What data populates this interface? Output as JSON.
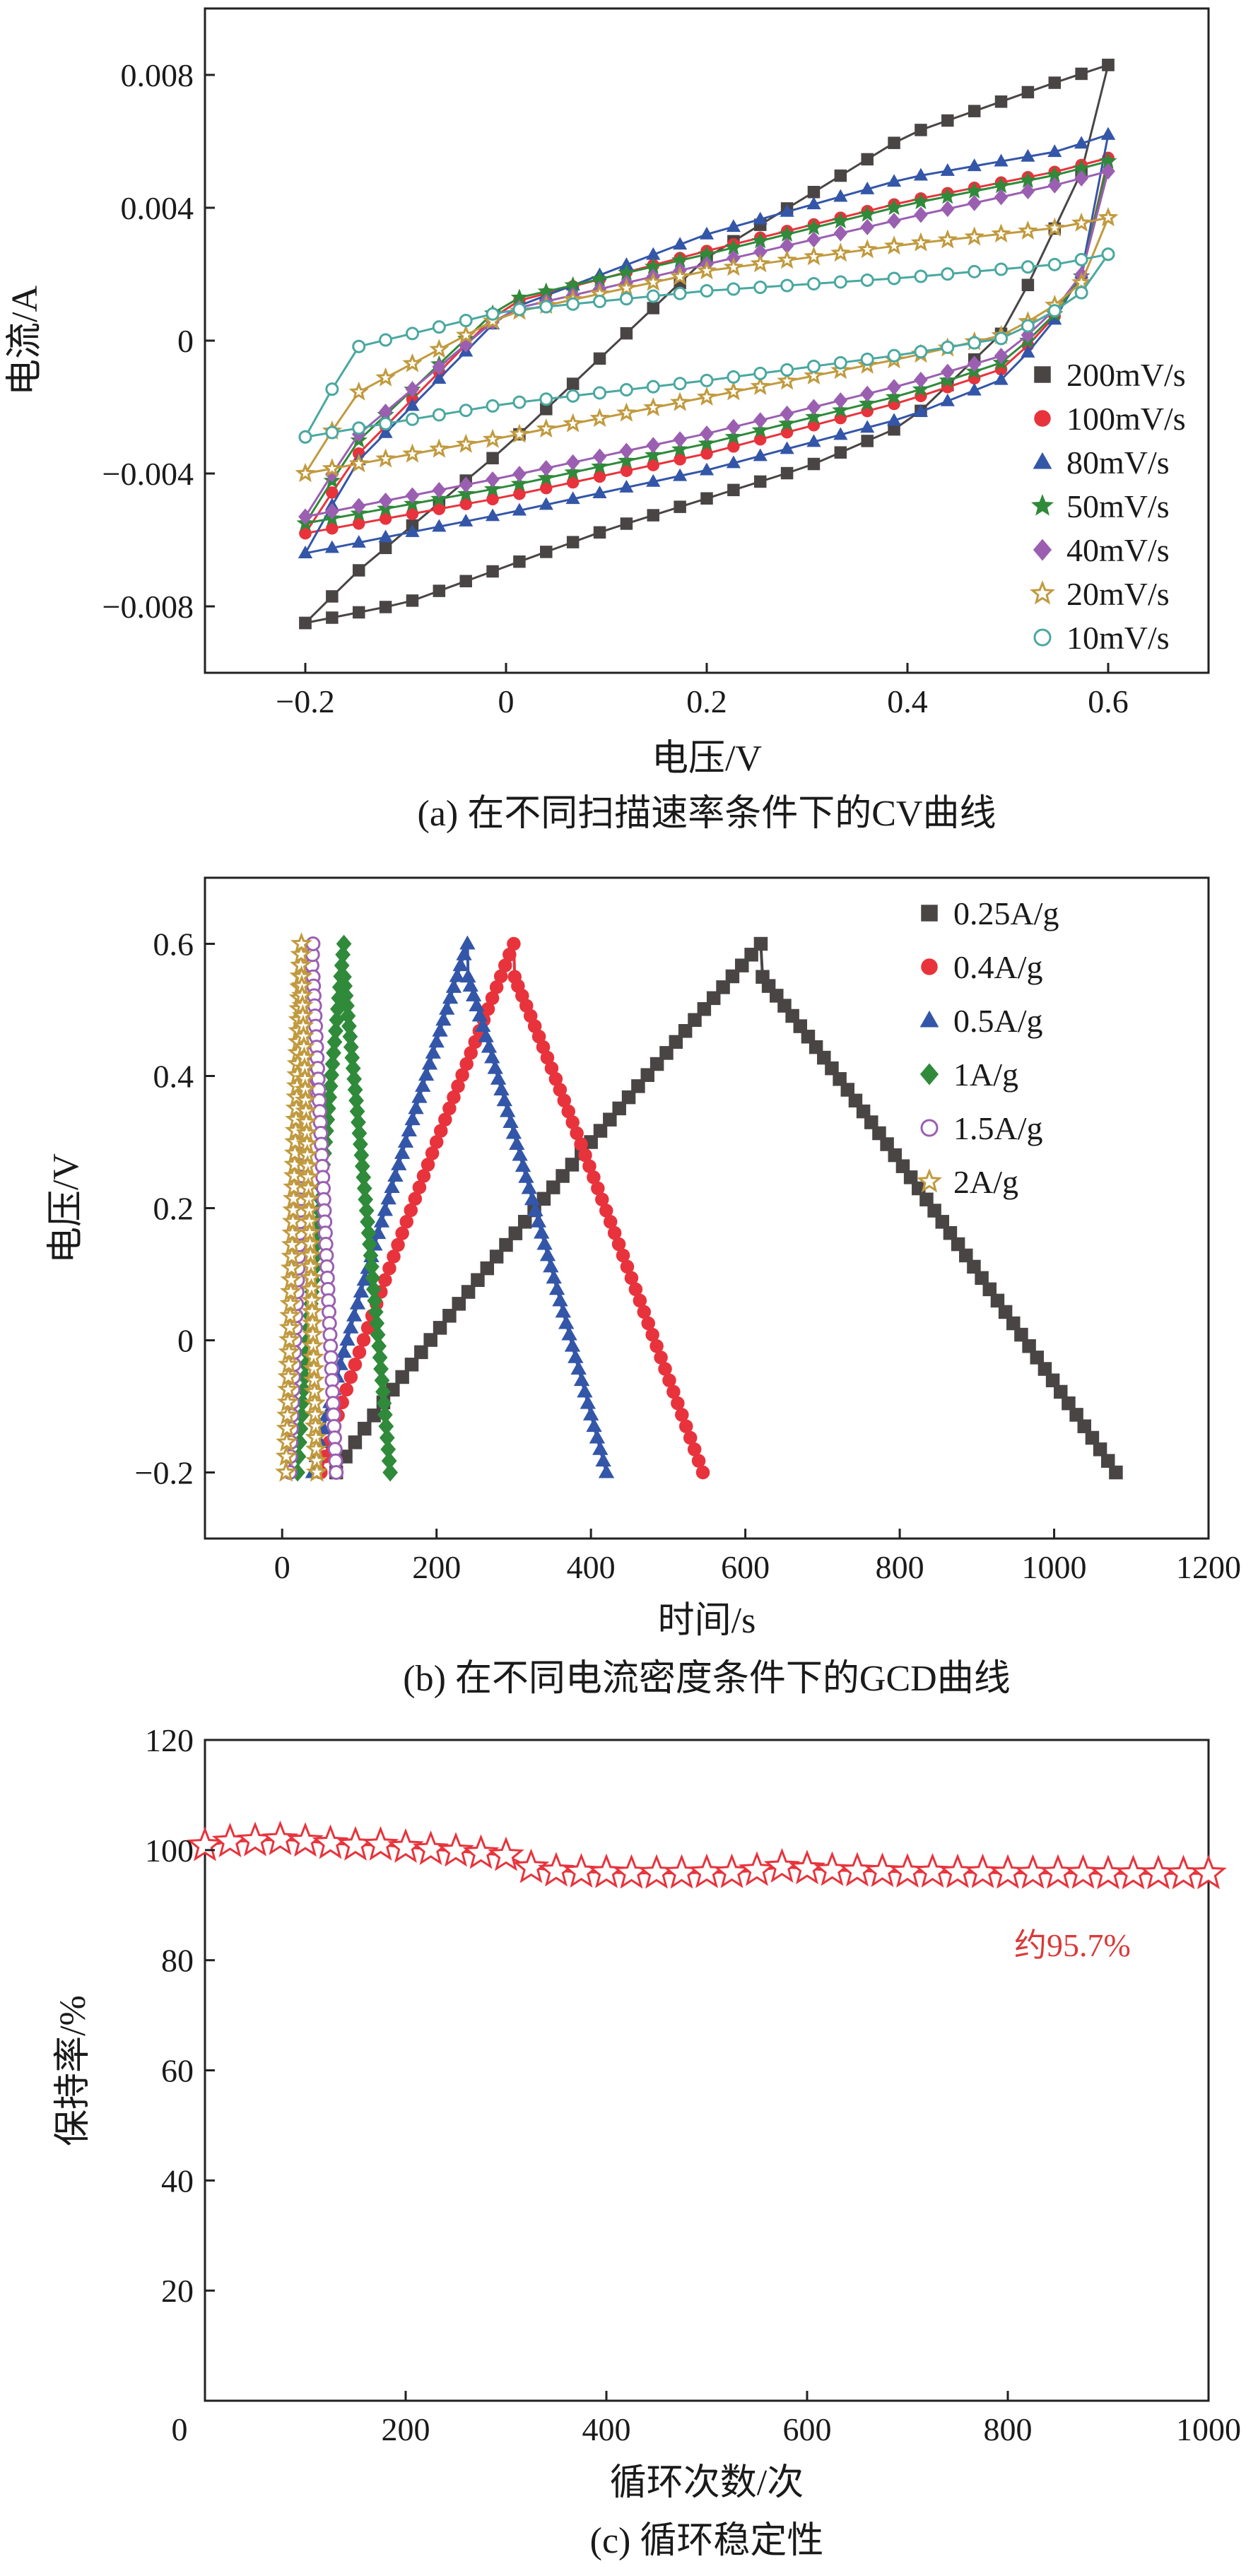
{
  "chart_data": [
    {
      "type": "line",
      "caption": "(a) 在不同扫描速率条件下的CV曲线",
      "xlabel": "电压/V",
      "ylabel": "电流/A",
      "xlim": [
        -0.3,
        0.7
      ],
      "ylim": [
        -0.01,
        0.01
      ],
      "xticks": [
        "−0.2",
        "0",
        "0.2",
        "0.4",
        "0.6"
      ],
      "yticks": [
        "−0.008",
        "−0.004",
        "0",
        "0.004",
        "0.008"
      ],
      "legend_position": "right",
      "series": [
        {
          "name": "200mV/s",
          "color": "#4a4545",
          "marker": "square",
          "open": false,
          "upper": [
            [
              -0.2,
              -0.0085
            ],
            [
              -0.15,
              -0.007
            ],
            [
              0,
              -0.0032
            ],
            [
              0.2,
              0.0025
            ],
            [
              0.4,
              0.0062
            ],
            [
              0.55,
              0.0078
            ],
            [
              0.6,
              0.0083
            ]
          ],
          "lower": [
            [
              -0.2,
              -0.0085
            ],
            [
              -0.1,
              -0.0079
            ],
            [
              0.1,
              -0.0057
            ],
            [
              0.3,
              -0.0038
            ],
            [
              0.4,
              -0.0025
            ],
            [
              0.5,
              0.0004
            ],
            [
              0.58,
              0.0055
            ],
            [
              0.6,
              0.0083
            ]
          ]
        },
        {
          "name": "100mV/s",
          "color": "#e8333c",
          "marker": "circle",
          "open": false,
          "upper": [
            [
              -0.2,
              -0.0058
            ],
            [
              -0.15,
              -0.0035
            ],
            [
              0,
              0.0011
            ],
            [
              0.2,
              0.0027
            ],
            [
              0.4,
              0.0042
            ],
            [
              0.55,
              0.0051
            ],
            [
              0.6,
              0.0055
            ]
          ],
          "lower": [
            [
              -0.2,
              -0.0058
            ],
            [
              0,
              -0.0047
            ],
            [
              0.2,
              -0.0034
            ],
            [
              0.4,
              -0.0018
            ],
            [
              0.5,
              -0.0008
            ],
            [
              0.57,
              0.0015
            ],
            [
              0.6,
              0.0055
            ]
          ]
        },
        {
          "name": "80mV/s",
          "color": "#3356a8",
          "marker": "triangle",
          "open": false,
          "upper": [
            [
              -0.2,
              -0.0064
            ],
            [
              -0.15,
              -0.0037
            ],
            [
              0,
              0.0009
            ],
            [
              0.2,
              0.0032
            ],
            [
              0.4,
              0.0049
            ],
            [
              0.55,
              0.0057
            ],
            [
              0.6,
              0.0062
            ]
          ],
          "lower": [
            [
              -0.2,
              -0.0064
            ],
            [
              0,
              -0.0052
            ],
            [
              0.2,
              -0.0039
            ],
            [
              0.4,
              -0.0023
            ],
            [
              0.5,
              -0.0011
            ],
            [
              0.57,
              0.0015
            ],
            [
              0.6,
              0.0062
            ]
          ]
        },
        {
          "name": "50mV/s",
          "color": "#2f8a3a",
          "marker": "star",
          "open": false,
          "upper": [
            [
              -0.2,
              -0.0055
            ],
            [
              -0.15,
              -0.0031
            ],
            [
              0,
              0.0012
            ],
            [
              0.2,
              0.0026
            ],
            [
              0.4,
              0.0041
            ],
            [
              0.55,
              0.005
            ],
            [
              0.6,
              0.0054
            ]
          ],
          "lower": [
            [
              -0.2,
              -0.0055
            ],
            [
              0,
              -0.0044
            ],
            [
              0.2,
              -0.0031
            ],
            [
              0.4,
              -0.0016
            ],
            [
              0.5,
              -0.0006
            ],
            [
              0.57,
              0.0015
            ],
            [
              0.6,
              0.0054
            ]
          ]
        },
        {
          "name": "40mV/s",
          "color": "#9b5fb1",
          "marker": "diamond",
          "open": false,
          "upper": [
            [
              -0.2,
              -0.0053
            ],
            [
              -0.15,
              -0.0029
            ],
            [
              0,
              0.0009
            ],
            [
              0.2,
              0.0023
            ],
            [
              0.4,
              0.0037
            ],
            [
              0.55,
              0.0047
            ],
            [
              0.6,
              0.0051
            ]
          ],
          "lower": [
            [
              -0.2,
              -0.0053
            ],
            [
              0,
              -0.0041
            ],
            [
              0.2,
              -0.0028
            ],
            [
              0.4,
              -0.0013
            ],
            [
              0.5,
              -0.0004
            ],
            [
              0.57,
              0.0016
            ],
            [
              0.6,
              0.0051
            ]
          ]
        },
        {
          "name": "20mV/s",
          "color": "#c19a3e",
          "marker": "star",
          "open": true,
          "upper": [
            [
              -0.2,
              -0.004
            ],
            [
              -0.15,
              -0.0016
            ],
            [
              0,
              0.0008
            ],
            [
              0.2,
              0.0021
            ],
            [
              0.4,
              0.0029
            ],
            [
              0.55,
              0.0034
            ],
            [
              0.6,
              0.0037
            ]
          ],
          "lower": [
            [
              -0.2,
              -0.004
            ],
            [
              0,
              -0.0029
            ],
            [
              0.2,
              -0.0017
            ],
            [
              0.4,
              -0.0005
            ],
            [
              0.5,
              0.0002
            ],
            [
              0.57,
              0.0015
            ],
            [
              0.6,
              0.0037
            ]
          ]
        },
        {
          "name": "10mV/s",
          "color": "#4aa8a0",
          "marker": "circle",
          "open": true,
          "upper": [
            [
              -0.2,
              -0.0029
            ],
            [
              -0.15,
              -0.0002
            ],
            [
              0,
              0.0009
            ],
            [
              0.2,
              0.0015
            ],
            [
              0.4,
              0.0019
            ],
            [
              0.55,
              0.0023
            ],
            [
              0.6,
              0.0026
            ]
          ],
          "lower": [
            [
              -0.2,
              -0.0029
            ],
            [
              0,
              -0.0019
            ],
            [
              0.2,
              -0.0012
            ],
            [
              0.4,
              -0.0004
            ],
            [
              0.5,
              0.0001
            ],
            [
              0.57,
              0.0013
            ],
            [
              0.6,
              0.0026
            ]
          ]
        }
      ]
    },
    {
      "type": "line",
      "caption": "(b) 在不同电流密度条件下的GCD曲线",
      "xlabel": "时间/s",
      "ylabel": "电压/V",
      "xlim": [
        -100,
        1200
      ],
      "ylim": [
        -0.3,
        0.7
      ],
      "xticks": [
        "0",
        "200",
        "400",
        "600",
        "800",
        "1000",
        "1200"
      ],
      "yticks": [
        "−0.2",
        "0",
        "0.2",
        "0.4",
        "0.6"
      ],
      "legend_position": "top-right",
      "series": [
        {
          "name": "0.25A/g",
          "color": "#4a4545",
          "marker": "square",
          "open": false,
          "t0": 70,
          "t_peak": 620,
          "t_end": 1080
        },
        {
          "name": "0.4A/g",
          "color": "#e8333c",
          "marker": "circle",
          "open": false,
          "t0": 50,
          "t_peak": 300,
          "t_end": 545
        },
        {
          "name": "0.5A/g",
          "color": "#3356a8",
          "marker": "triangle",
          "open": false,
          "t0": 40,
          "t_peak": 240,
          "t_end": 420
        },
        {
          "name": "1A/g",
          "color": "#2f8a3a",
          "marker": "diamond",
          "open": false,
          "t0": 20,
          "t_peak": 80,
          "t_end": 140
        },
        {
          "name": "1.5A/g",
          "color": "#9b5fb1",
          "marker": "circle",
          "open": true,
          "t0": 10,
          "t_peak": 40,
          "t_end": 70
        },
        {
          "name": "2A/g",
          "color": "#c19a3e",
          "marker": "star",
          "open": true,
          "t0": 5,
          "t_peak": 25,
          "t_end": 45
        }
      ]
    },
    {
      "type": "line",
      "caption": "(c) 循环稳定性",
      "xlabel": "循环次数/次",
      "ylabel": "保持率/%",
      "xlim": [
        0,
        1000
      ],
      "ylim": [
        0,
        120
      ],
      "xticks": [
        "0",
        "200",
        "400",
        "600",
        "800",
        "1000"
      ],
      "yticks": [
        "20",
        "40",
        "60",
        "80",
        "100",
        "120"
      ],
      "annotation": "约95.7%",
      "series": [
        {
          "color": "#e8333c",
          "marker": "star",
          "open": true,
          "x": [
            0,
            25,
            50,
            75,
            100,
            125,
            150,
            175,
            200,
            225,
            250,
            275,
            300,
            325,
            350,
            375,
            400,
            425,
            450,
            475,
            500,
            525,
            550,
            575,
            600,
            625,
            650,
            675,
            700,
            725,
            750,
            775,
            800,
            825,
            850,
            875,
            900,
            925,
            950,
            975,
            1000
          ],
          "y": [
            100.8,
            101.5,
            101.7,
            101.9,
            101.6,
            101.2,
            100.9,
            100.9,
            100.5,
            100.1,
            99.8,
            99.4,
            99,
            96.8,
            96.2,
            96,
            95.9,
            95.8,
            95.8,
            95.8,
            95.9,
            95.9,
            96.3,
            96.9,
            96.6,
            96.3,
            96.2,
            96.1,
            96,
            96,
            95.9,
            95.9,
            95.8,
            95.8,
            95.8,
            95.8,
            95.7,
            95.7,
            95.7,
            95.7,
            95.7
          ]
        }
      ]
    }
  ]
}
